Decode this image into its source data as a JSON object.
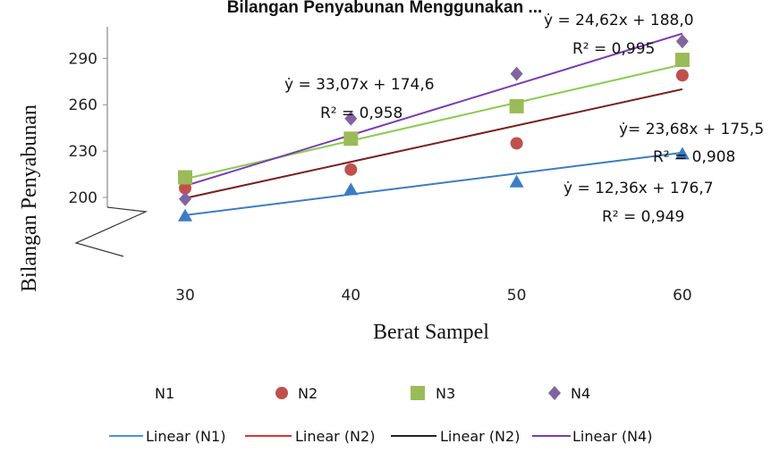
{
  "chart_data": {
    "type": "scatter",
    "title": "Bilangan Penyabunan Menggunakan ...",
    "xlabel": "Berat Sampel",
    "ylabel": "Bilangan Penyabunan",
    "x": [
      30,
      40,
      50,
      60
    ],
    "x_ticks": [
      "30",
      "40",
      "50",
      "60"
    ],
    "y_ticks": [
      "200",
      "230",
      "260",
      "290"
    ],
    "ylim": [
      200,
      305
    ],
    "axis_break": true,
    "grid": false,
    "legend_position": "bottom",
    "series": [
      {
        "name": "N1",
        "marker": "triangle",
        "color": "#3C7CC4",
        "values": [
          188,
          205,
          210,
          228
        ]
      },
      {
        "name": "N2",
        "marker": "circle",
        "color": "#C0504D",
        "values": [
          206,
          218,
          235,
          279
        ]
      },
      {
        "name": "N3",
        "marker": "square",
        "color": "#9BBB59",
        "values": [
          213,
          238,
          259,
          289
        ]
      },
      {
        "name": "N4",
        "marker": "diamond",
        "color": "#8064A2",
        "values": [
          199,
          251,
          280,
          301
        ]
      }
    ],
    "trendlines": [
      {
        "name": "Linear (N1)",
        "color": "#4F93D9",
        "slope": 12.36,
        "intercept": 176.7,
        "equation": "ẏ = 12,36x + 176,7",
        "r2": "R² = 0,949"
      },
      {
        "name": "Linear (N2)",
        "color": "#E4332E",
        "slope": 23.68,
        "intercept": 175.5,
        "equation": "ẏ= 23,68x + 175,5",
        "r2": "R² = 0,908"
      },
      {
        "name": "Linear (N2)",
        "color": "#222222",
        "slope": 23.68,
        "intercept": 175.5,
        "equation": "",
        "r2": ""
      },
      {
        "name": "Linear (N4)",
        "color": "#7A3BB5",
        "slope": 33.07,
        "intercept": 174.6,
        "equation": "ẏ = 33,07x + 174,6",
        "r2": "R² = 0,958"
      }
    ],
    "extra_labels": {
      "equation": "ẏ = 24,62x + 188,0",
      "r2": "R² = 0,995"
    }
  }
}
